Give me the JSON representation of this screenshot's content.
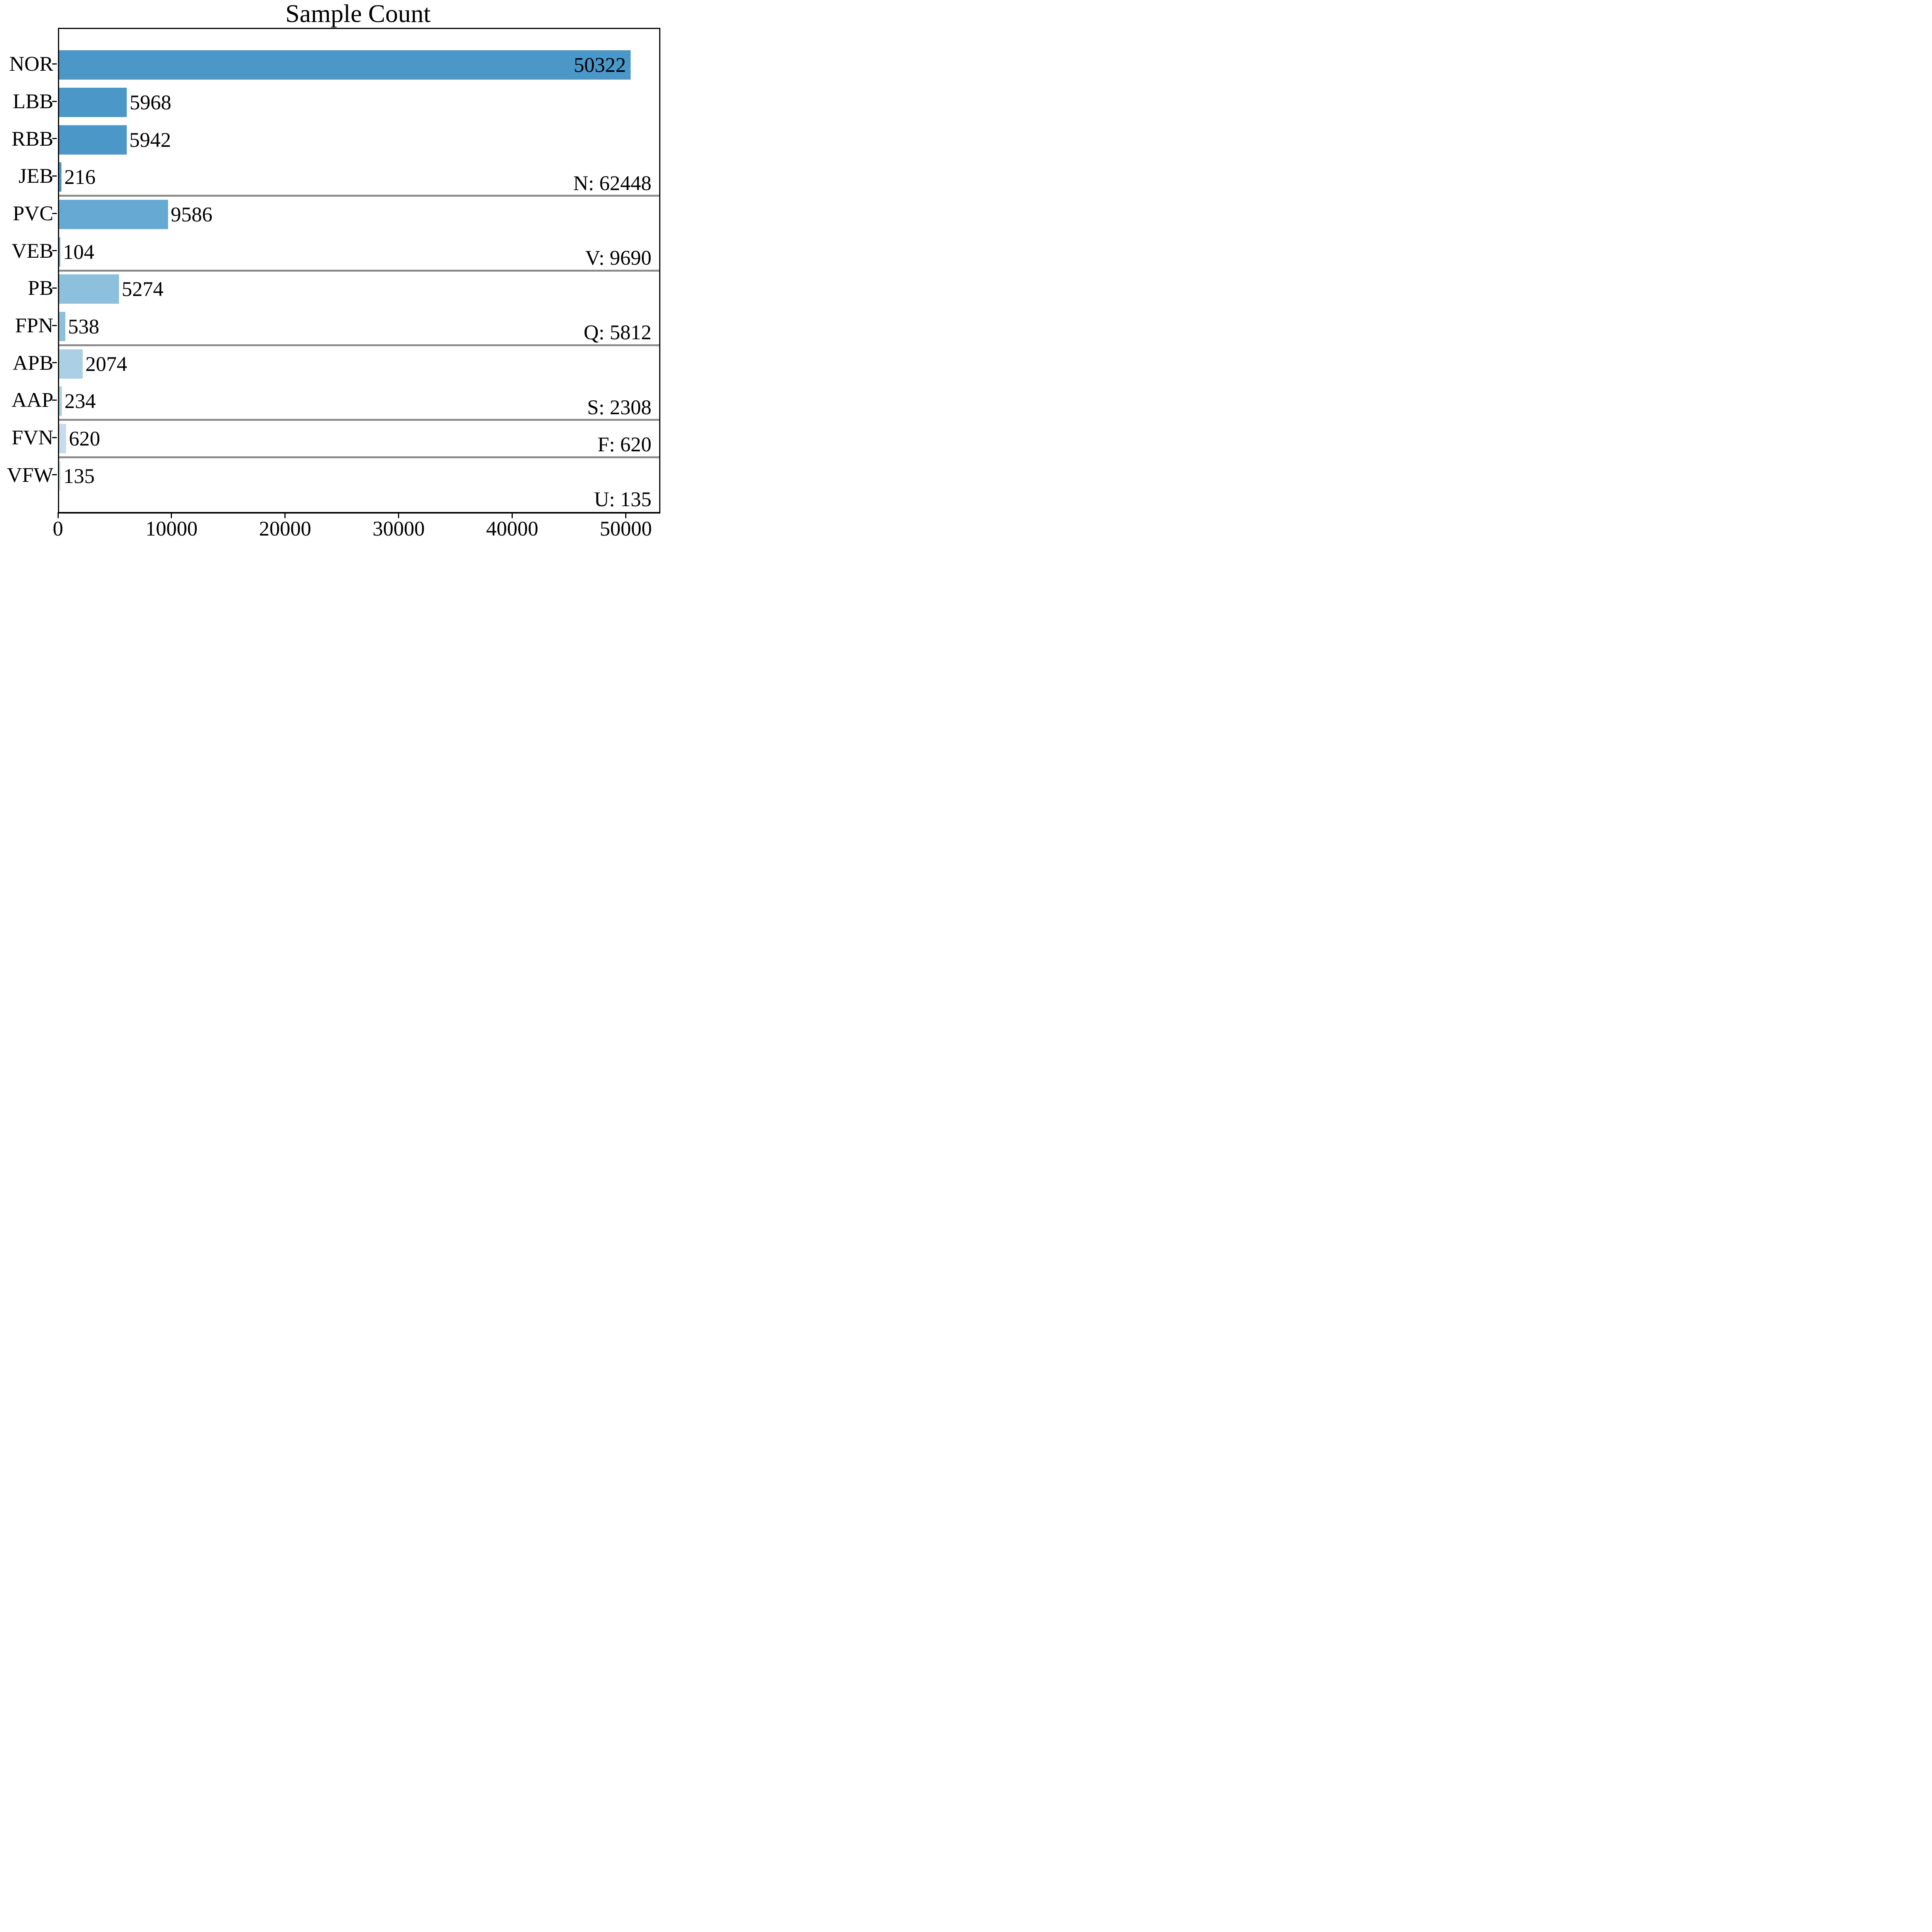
{
  "title": "Sample Count",
  "chart_data": {
    "type": "bar",
    "orientation": "horizontal",
    "title": "Sample Count",
    "categories": [
      "NOR",
      "LBB",
      "RBB",
      "JEB",
      "PVC",
      "VEB",
      "PB",
      "FPN",
      "APB",
      "AAP",
      "FVN",
      "VFW"
    ],
    "values": [
      50322,
      5968,
      5942,
      216,
      9586,
      104,
      5274,
      538,
      2074,
      234,
      620,
      135
    ],
    "value_labels": [
      "50322",
      "5968",
      "5942",
      "216",
      "9586",
      "104",
      "5274",
      "538",
      "2074",
      "234",
      "620",
      "135"
    ],
    "bar_colors": [
      "#4a97c8",
      "#4a97c8",
      "#4a97c8",
      "#4a97c8",
      "#66a9d3",
      "#66a9d3",
      "#8cc0dc",
      "#8cc0dc",
      "#abd0e6",
      "#abd0e6",
      "#c6dbef",
      "#d4e5f2"
    ],
    "groups": [
      {
        "label": "N: 62448",
        "after_index": 3,
        "has_separator": true
      },
      {
        "label": "V: 9690",
        "after_index": 5,
        "has_separator": true
      },
      {
        "label": "Q: 5812",
        "after_index": 7,
        "has_separator": true
      },
      {
        "label": "S: 2308",
        "after_index": 9,
        "has_separator": true
      },
      {
        "label": "F: 620",
        "after_index": 10,
        "has_separator": true
      },
      {
        "label": "U: 135",
        "after_index": 11,
        "has_separator": false
      }
    ],
    "x_ticks": [
      "0",
      "10000",
      "20000",
      "30000",
      "40000",
      "50000"
    ],
    "x_tick_values": [
      0,
      10000,
      20000,
      30000,
      40000,
      50000
    ],
    "xlim": [
      0,
      52838
    ],
    "grid": false,
    "legend": "none",
    "separator_color": "#8c8c8c",
    "axis_color": "#000000",
    "text_color": "#000000",
    "background_color": "#ffffff"
  }
}
